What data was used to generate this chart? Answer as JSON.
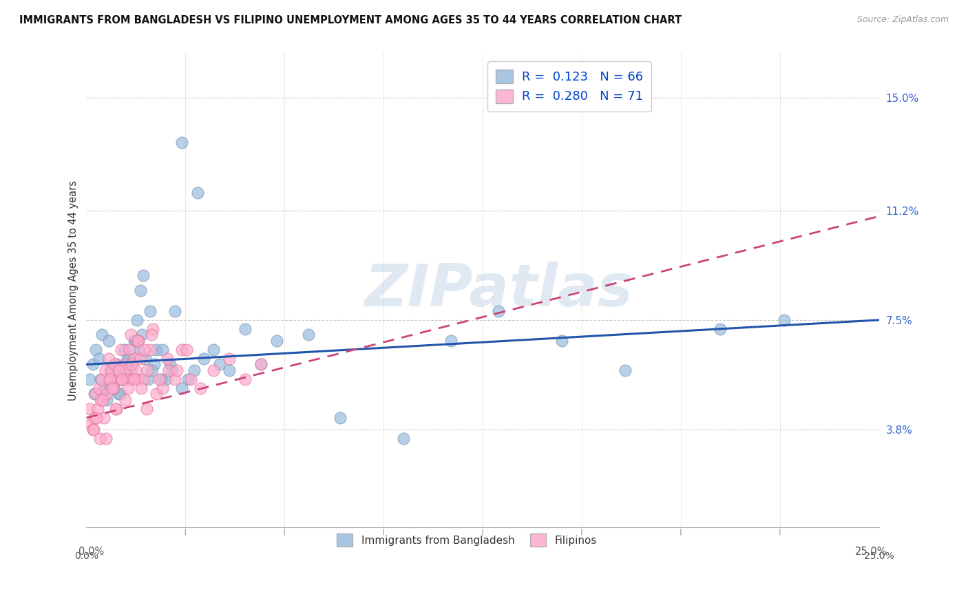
{
  "title": "IMMIGRANTS FROM BANGLADESH VS FILIPINO UNEMPLOYMENT AMONG AGES 35 TO 44 YEARS CORRELATION CHART",
  "source": "Source: ZipAtlas.com",
  "ylabel": "Unemployment Among Ages 35 to 44 years",
  "ytick_values": [
    3.8,
    7.5,
    11.2,
    15.0
  ],
  "ytick_labels": [
    "3.8%",
    "7.5%",
    "11.2%",
    "15.0%"
  ],
  "xmin": 0.0,
  "xmax": 25.0,
  "ymin": 0.5,
  "ymax": 16.5,
  "legend1_R": "0.123",
  "legend1_N": "66",
  "legend2_R": "0.280",
  "legend2_N": "71",
  "legend1_label": "Immigrants from Bangladesh",
  "legend2_label": "Filipinos",
  "blue_color": "#99bbdd",
  "pink_color": "#ffaacc",
  "blue_edge": "#7799bb",
  "pink_edge": "#dd7799",
  "trendline_blue": "#2255aa",
  "trendline_pink": "#cc4477",
  "watermark": "ZIPatlas",
  "blue_x": [
    0.1,
    0.2,
    0.3,
    0.4,
    0.5,
    0.6,
    0.7,
    0.8,
    0.9,
    1.0,
    1.1,
    1.2,
    1.3,
    1.4,
    1.5,
    1.6,
    1.7,
    1.8,
    2.0,
    2.2,
    2.5,
    2.8,
    3.0,
    3.5,
    4.0,
    5.0,
    6.0,
    7.0,
    8.0,
    10.0,
    11.5,
    13.0,
    15.0,
    17.0,
    20.0,
    22.0,
    0.55,
    0.75,
    0.95,
    1.15,
    1.35,
    1.55,
    1.75,
    1.95,
    2.15,
    2.4,
    2.7,
    3.2,
    3.7,
    4.5,
    5.5,
    0.25,
    0.45,
    0.65,
    0.85,
    1.05,
    1.25,
    1.45,
    1.65,
    1.85,
    2.05,
    2.35,
    2.65,
    3.0,
    3.4,
    4.2
  ],
  "blue_y": [
    5.5,
    6.0,
    6.5,
    6.2,
    7.0,
    5.2,
    6.8,
    5.5,
    5.8,
    5.0,
    5.5,
    6.5,
    6.2,
    5.8,
    6.8,
    7.5,
    8.5,
    9.0,
    7.8,
    6.5,
    5.5,
    7.8,
    13.5,
    11.8,
    6.5,
    7.2,
    6.8,
    7.0,
    4.2,
    3.5,
    6.8,
    7.8,
    6.8,
    5.8,
    7.2,
    7.5,
    5.2,
    5.8,
    6.0,
    5.5,
    6.2,
    6.8,
    7.0,
    5.5,
    6.0,
    6.5,
    5.8,
    5.5,
    6.2,
    5.8,
    6.0,
    5.0,
    5.5,
    4.8,
    5.2,
    5.0,
    6.0,
    5.5,
    6.5,
    6.2,
    5.8,
    5.5,
    6.0,
    5.2,
    5.8,
    6.0
  ],
  "pink_x": [
    0.1,
    0.15,
    0.2,
    0.25,
    0.3,
    0.35,
    0.4,
    0.45,
    0.5,
    0.55,
    0.6,
    0.65,
    0.7,
    0.75,
    0.8,
    0.85,
    0.9,
    0.95,
    1.0,
    1.05,
    1.1,
    1.15,
    1.2,
    1.25,
    1.3,
    1.35,
    1.4,
    1.45,
    1.5,
    1.55,
    1.6,
    1.65,
    1.7,
    1.8,
    1.9,
    2.0,
    2.1,
    2.2,
    2.4,
    2.6,
    2.8,
    3.0,
    3.3,
    3.6,
    4.0,
    4.5,
    5.0,
    5.5,
    0.22,
    0.32,
    0.42,
    0.52,
    0.62,
    0.72,
    0.82,
    0.92,
    1.02,
    1.12,
    1.22,
    1.32,
    1.42,
    1.52,
    1.62,
    1.72,
    1.82,
    1.92,
    2.05,
    2.3,
    2.55,
    2.85,
    3.15
  ],
  "pink_y": [
    4.5,
    4.0,
    3.8,
    4.2,
    5.0,
    4.5,
    5.2,
    4.8,
    5.5,
    4.2,
    5.8,
    5.0,
    6.2,
    5.5,
    5.8,
    5.2,
    6.0,
    4.5,
    5.5,
    5.8,
    6.5,
    5.5,
    6.0,
    5.8,
    5.5,
    6.5,
    7.0,
    5.5,
    6.2,
    5.8,
    5.5,
    6.8,
    6.2,
    5.5,
    4.5,
    6.5,
    7.2,
    5.0,
    5.2,
    5.8,
    5.5,
    6.5,
    5.5,
    5.2,
    5.8,
    6.2,
    5.5,
    6.0,
    3.8,
    4.2,
    3.5,
    4.8,
    3.5,
    5.5,
    5.2,
    4.5,
    5.8,
    5.5,
    4.8,
    5.2,
    6.0,
    5.5,
    6.8,
    5.2,
    6.5,
    5.8,
    7.0,
    5.5,
    6.2,
    5.8,
    6.5
  ],
  "blue_trend": [
    6.0,
    7.5
  ],
  "pink_trend_x1": 0.0,
  "pink_trend_y1": 4.2,
  "pink_trend_x2": 25.0,
  "pink_trend_y2": 11.0
}
